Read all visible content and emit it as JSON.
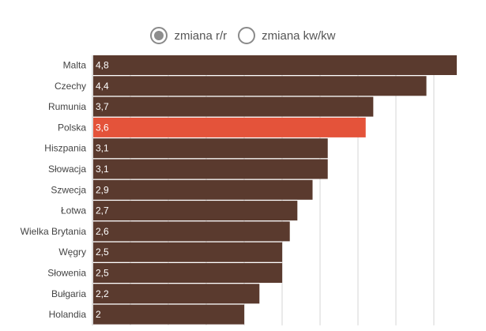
{
  "toggle": {
    "options": [
      {
        "label": "zmiana r/r",
        "selected": true
      },
      {
        "label": "zmiana kw/kw",
        "selected": false
      }
    ]
  },
  "colors": {
    "bar": "#5a3a2e",
    "highlight": "#e4533a",
    "grid": "#d6d6d6"
  },
  "chart_data": {
    "type": "bar",
    "orientation": "horizontal",
    "categories": [
      "Malta",
      "Czechy",
      "Rumunia",
      "Polska",
      "Hiszpania",
      "Słowacja",
      "Szwecja",
      "Łotwa",
      "Wielka Brytania",
      "Węgry",
      "Słowenia",
      "Bułgaria",
      "Holandia"
    ],
    "values": [
      4.8,
      4.4,
      3.7,
      3.6,
      3.1,
      3.1,
      2.9,
      2.7,
      2.6,
      2.5,
      2.5,
      2.2,
      2
    ],
    "value_labels": [
      "4,8",
      "4,4",
      "3,7",
      "3,6",
      "3,1",
      "3,1",
      "2,9",
      "2,7",
      "2,6",
      "2,5",
      "2,5",
      "2,2",
      "2"
    ],
    "highlight_category": "Polska",
    "xlim": [
      0,
      4.8
    ],
    "grid": true
  }
}
